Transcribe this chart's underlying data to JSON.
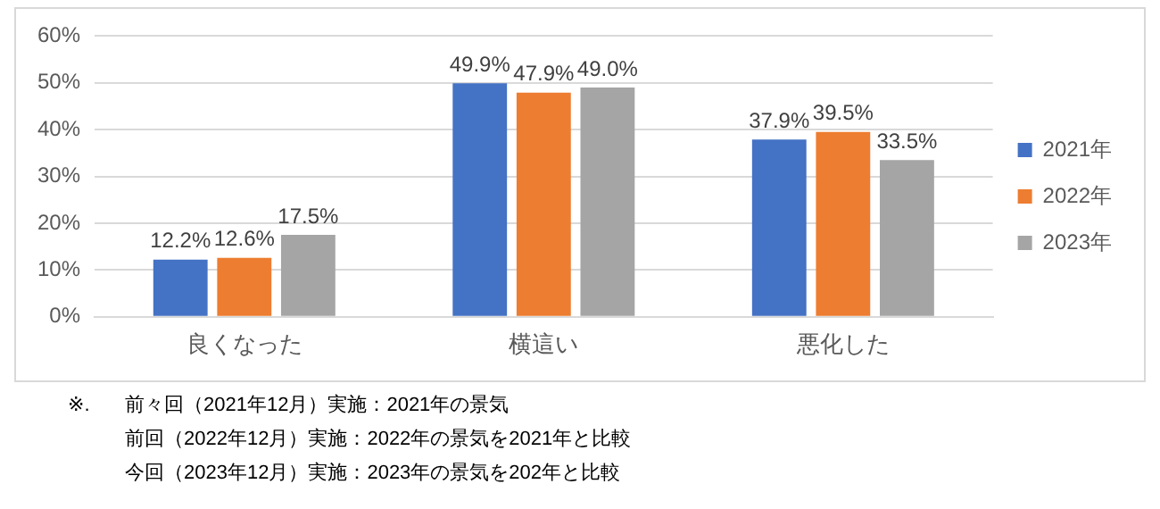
{
  "chart_data": {
    "type": "bar",
    "categories": [
      "良くなった",
      "横這い",
      "悪化した"
    ],
    "series": [
      {
        "name": "2021年",
        "color": "#4472c4",
        "values": [
          12.2,
          49.9,
          37.9
        ],
        "value_labels": [
          "12.2%",
          "49.9%",
          "37.9%"
        ]
      },
      {
        "name": "2022年",
        "color": "#ed7d31",
        "values": [
          12.6,
          47.9,
          39.5
        ],
        "value_labels": [
          "12.6%",
          "47.9%",
          "39.5%"
        ]
      },
      {
        "name": "2023年",
        "color": "#a5a5a5",
        "values": [
          17.5,
          49.0,
          33.5
        ],
        "value_labels": [
          "17.5%",
          "49.0%",
          "33.5%"
        ]
      }
    ],
    "ylim": [
      0,
      60
    ],
    "yticks": [
      {
        "value": 0,
        "label": "0%"
      },
      {
        "value": 10,
        "label": "10%"
      },
      {
        "value": 20,
        "label": "20%"
      },
      {
        "value": 30,
        "label": "30%"
      },
      {
        "value": 40,
        "label": "40%"
      },
      {
        "value": 50,
        "label": "50%"
      },
      {
        "value": 60,
        "label": "60%"
      }
    ],
    "grid": "y",
    "legend": "right",
    "annotations": [
      "※.",
      "前々回（2021年12月）実施：2021年の景気",
      "前回（2022年12月）実施：2022年の景気を2021年と比較",
      "今回（2023年12月）実施：2023年の景気を202年と比較"
    ]
  }
}
